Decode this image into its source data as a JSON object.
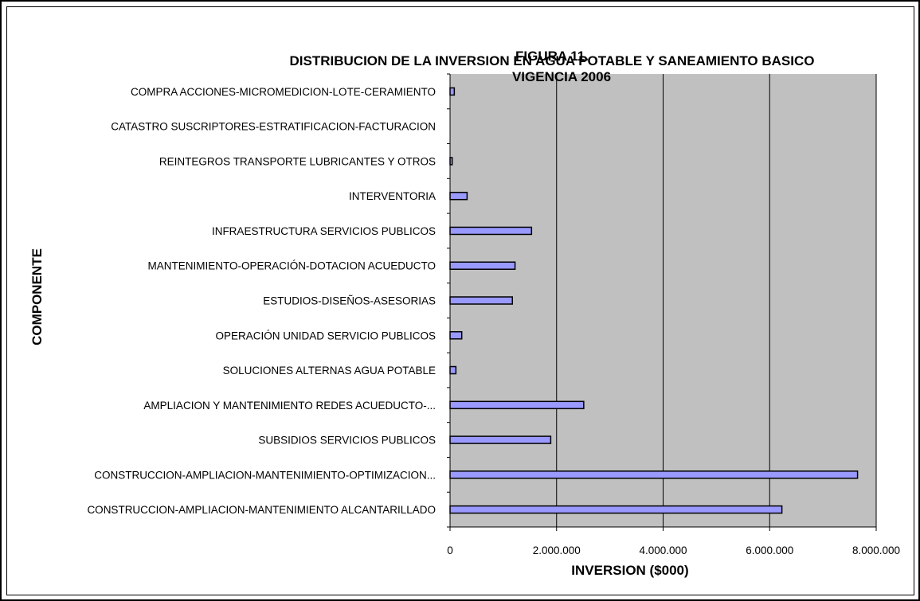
{
  "chart_data": {
    "type": "bar",
    "orientation": "horizontal",
    "title_lines": [
      "FIGURA 11.",
      "DISTRIBUCION DE LA INVERSION EN AGUA POTABLE Y SANEAMIENTO BASICO",
      "VIGENCIA 2006"
    ],
    "xlabel": "INVERSION ($000)",
    "ylabel": "COMPONENTE",
    "xlim": [
      0,
      8000000
    ],
    "x_ticks": [
      0,
      2000000,
      4000000,
      6000000,
      8000000
    ],
    "x_tick_labels": [
      "0",
      "2.000.000",
      "4.000.000",
      "6.000.000",
      "8.000.000"
    ],
    "categories": [
      "CONSTRUCCION-AMPLIACION-MANTENIMIENTO ALCANTARILLADO",
      "CONSTRUCCION-AMPLIACION-MANTENIMIENTO-OPTIMIZACION...",
      "SUBSIDIOS SERVICIOS PUBLICOS",
      "AMPLIACION Y MANTENIMIENTO REDES ACUEDUCTO-...",
      "SOLUCIONES ALTERNAS AGUA POTABLE",
      "OPERACIÓN UNIDAD SERVICIO PUBLICOS",
      "ESTUDIOS-DISEÑOS-ASESORIAS",
      "MANTENIMIENTO-OPERACIÓN-DOTACION ACUEDUCTO",
      "INFRAESTRUCTURA SERVICIOS PUBLICOS",
      "INTERVENTORIA",
      "REINTEGROS TRANSPORTE LUBRICANTES Y OTROS",
      "CATASTRO SUSCRIPTORES-ESTRATIFICACION-FACTURACION",
      "COMPRA ACCIONES-MICROMEDICION-LOTE-CERAMIENTO"
    ],
    "values": [
      6230000,
      7650000,
      1890000,
      2510000,
      110000,
      220000,
      1170000,
      1220000,
      1530000,
      320000,
      40000,
      0,
      80000
    ],
    "grid": true,
    "legend": "none",
    "colors": {
      "plot_bg": "#c0c0c0",
      "bar_fill": "#9999ff",
      "bar_stroke": "#000000",
      "grid": "#000000"
    }
  }
}
